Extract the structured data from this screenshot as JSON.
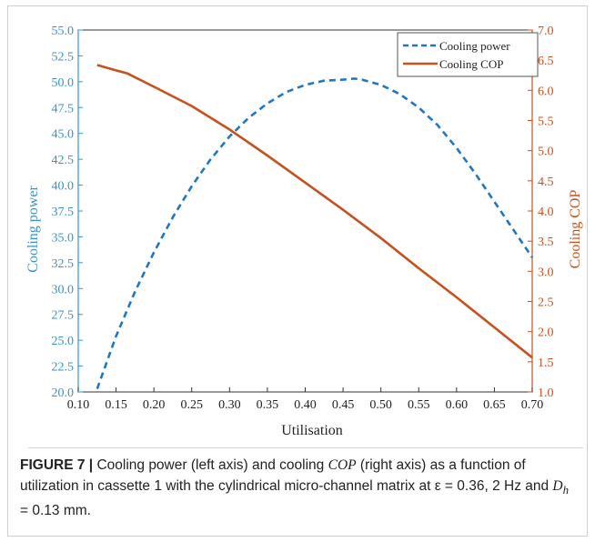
{
  "chart_data": {
    "type": "line",
    "xlabel": "Utilisation",
    "ylabel_left": "Cooling power",
    "ylabel_right": "Cooling COP",
    "xlim": [
      0.1,
      0.7
    ],
    "ylim_left": [
      20.0,
      55.0
    ],
    "ylim_right": [
      1.0,
      7.0
    ],
    "x_ticks": [
      "0.10",
      "0.15",
      "0.20",
      "0.25",
      "0.30",
      "0.35",
      "0.40",
      "0.45",
      "0.50",
      "0.55",
      "0.60",
      "0.65",
      "0.70"
    ],
    "y_left_ticks": [
      "20.0",
      "22.5",
      "25.0",
      "27.5",
      "30.0",
      "32.5",
      "35.0",
      "37.5",
      "40.0",
      "42.5",
      "45.0",
      "47.5",
      "50.0",
      "52.5",
      "55.0"
    ],
    "y_right_ticks": [
      "1.0",
      "1.5",
      "2.0",
      "2.5",
      "3.0",
      "3.5",
      "4.0",
      "4.5",
      "5.0",
      "5.5",
      "6.0",
      "6.5",
      "7.0"
    ],
    "legend_position": "top-right",
    "grid": false,
    "colors": {
      "cooling_power": "#1f77c4",
      "cooling_cop": "#c8501c",
      "axis_left": "#3a92c8",
      "axis_right": "#c8501c"
    },
    "series": [
      {
        "name": "Cooling power",
        "axis": "left",
        "style": "dashed",
        "x": [
          0.125,
          0.15,
          0.175,
          0.2,
          0.225,
          0.25,
          0.275,
          0.3,
          0.325,
          0.35,
          0.375,
          0.4,
          0.425,
          0.45,
          0.465,
          0.475,
          0.5,
          0.525,
          0.55,
          0.575,
          0.6,
          0.625,
          0.65,
          0.675,
          0.7
        ],
        "values": [
          20.3,
          25.4,
          29.7,
          33.5,
          36.9,
          39.9,
          42.5,
          44.7,
          46.5,
          47.9,
          49.0,
          49.7,
          50.1,
          50.2,
          50.3,
          50.2,
          49.7,
          48.8,
          47.5,
          45.8,
          43.6,
          41.1,
          38.4,
          35.7,
          33.0
        ]
      },
      {
        "name": "Cooling COP",
        "axis": "right",
        "style": "solid",
        "x": [
          0.125,
          0.15,
          0.165,
          0.2,
          0.25,
          0.3,
          0.35,
          0.4,
          0.45,
          0.5,
          0.55,
          0.6,
          0.65,
          0.7
        ],
        "values": [
          6.42,
          6.33,
          6.28,
          6.06,
          5.74,
          5.35,
          4.92,
          4.47,
          4.02,
          3.55,
          3.05,
          2.57,
          2.07,
          1.57
        ]
      }
    ]
  },
  "caption": {
    "label": "FIGURE 7 |",
    "text_1": " Cooling power (left axis) and cooling ",
    "cop": "COP",
    "text_2": " (right axis) as a function of utilization in cassette 1 with the cylindrical micro-channel matrix at ε = 0.36, 2 Hz and ",
    "dh": "D",
    "dh_sub": "h",
    "text_3": " = 0.13 mm."
  }
}
